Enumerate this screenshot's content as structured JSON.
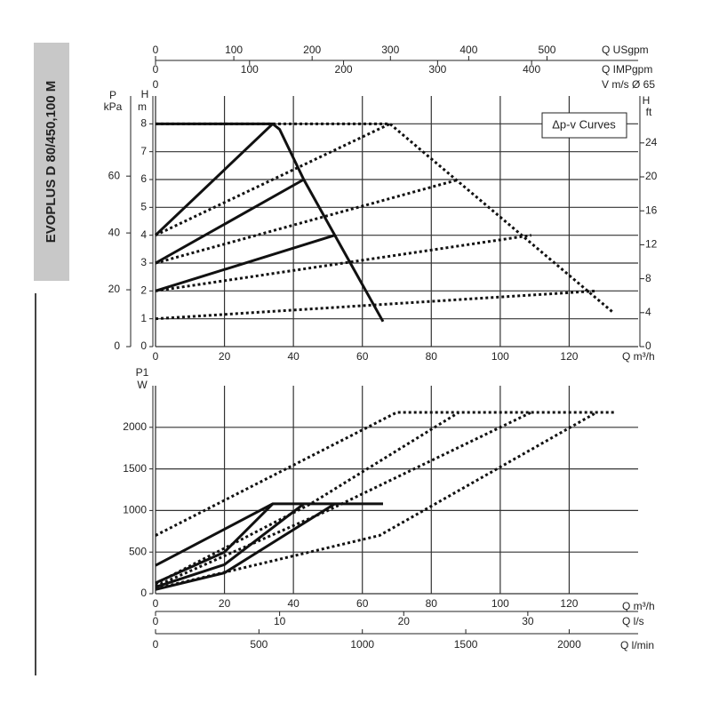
{
  "side_title": "EVOPLUS D 80/450,100 M",
  "chart_data": [
    {
      "type": "line",
      "xlabel": "Q m³/h",
      "ylabel": [
        "H",
        "m"
      ],
      "annotation": "Δp-v Curves",
      "xlim": [
        0,
        140
      ],
      "xticks": [
        0,
        20,
        40,
        60,
        80,
        100,
        120
      ],
      "ylim": [
        0,
        9
      ],
      "yticks": [
        0,
        1,
        2,
        3,
        4,
        5,
        6,
        7,
        8
      ],
      "grid": true,
      "extra_axes": [
        {
          "label": [
            "Q USgpm"
          ],
          "lim": [
            0,
            616.4
          ],
          "ticks": [
            0,
            100,
            200,
            300,
            400,
            500
          ]
        },
        {
          "label": [
            "Q IMPgpm"
          ],
          "lim": [
            0,
            513.3
          ],
          "ticks": [
            0,
            100,
            200,
            300,
            400
          ]
        },
        {
          "label": [
            "V m/s Ø 65"
          ],
          "lim": [
            0,
            11.72
          ],
          "ticks": [
            0
          ]
        },
        {
          "label": [
            "P",
            "kPa"
          ],
          "lim": [
            0,
            88.2
          ],
          "ticks": [
            0,
            20,
            40,
            60
          ]
        },
        {
          "label": [
            "H",
            "ft"
          ],
          "lim": [
            0,
            29.53
          ],
          "ticks": [
            0,
            4,
            8,
            12,
            16,
            20,
            24
          ]
        }
      ],
      "series": [
        {
          "color": "#111111",
          "dash": false,
          "x": [
            0,
            34,
            36,
            43,
            52,
            66
          ],
          "values": [
            8,
            8,
            7.8,
            6,
            4,
            0.9
          ]
        },
        {
          "color": "#111111",
          "dash": false,
          "x": [
            0,
            34
          ],
          "values": [
            4,
            8
          ]
        },
        {
          "color": "#111111",
          "dash": false,
          "x": [
            0,
            43
          ],
          "values": [
            3,
            6
          ]
        },
        {
          "color": "#111111",
          "dash": false,
          "x": [
            0,
            52
          ],
          "values": [
            2,
            4
          ]
        },
        {
          "color": "#111111",
          "dash": true,
          "x": [
            0,
            68,
            133
          ],
          "values": [
            8,
            8,
            1.2
          ]
        },
        {
          "color": "#111111",
          "dash": true,
          "x": [
            0,
            68
          ],
          "values": [
            4,
            8
          ]
        },
        {
          "color": "#111111",
          "dash": true,
          "x": [
            0,
            88
          ],
          "values": [
            3,
            6
          ]
        },
        {
          "color": "#111111",
          "dash": true,
          "x": [
            0,
            109
          ],
          "values": [
            2,
            4
          ]
        },
        {
          "color": "#111111",
          "dash": true,
          "x": [
            0,
            128
          ],
          "values": [
            1,
            2
          ]
        }
      ]
    },
    {
      "type": "line",
      "xlabel": "Q m³/h",
      "ylabel": [
        "P1",
        "W"
      ],
      "xlim": [
        0,
        140
      ],
      "xticks": [
        0,
        20,
        40,
        60,
        80,
        100,
        120
      ],
      "ylim": [
        0,
        2500
      ],
      "yticks": [
        0,
        500,
        1000,
        1500,
        2000
      ],
      "grid": true,
      "extra_axes": [
        {
          "label": [
            "Q l/s"
          ],
          "lim": [
            0,
            38.89
          ],
          "ticks": [
            0,
            10,
            20,
            30
          ]
        },
        {
          "label": [
            "Q l/min"
          ],
          "lim": [
            0,
            2333.3
          ],
          "ticks": [
            0,
            500,
            1000,
            1500,
            2000
          ]
        }
      ],
      "series": [
        {
          "color": "#111111",
          "dash": false,
          "x": [
            0,
            34,
            66
          ],
          "values": [
            340,
            1080,
            1080
          ]
        },
        {
          "color": "#111111",
          "dash": false,
          "x": [
            0,
            20,
            34
          ],
          "values": [
            130,
            500,
            1080
          ]
        },
        {
          "color": "#111111",
          "dash": false,
          "x": [
            0,
            20,
            43
          ],
          "values": [
            80,
            350,
            1080
          ]
        },
        {
          "color": "#111111",
          "dash": false,
          "x": [
            0,
            20,
            52
          ],
          "values": [
            50,
            250,
            1080
          ]
        },
        {
          "color": "#111111",
          "dash": true,
          "x": [
            0,
            70,
            133
          ],
          "values": [
            700,
            2180,
            2180
          ]
        },
        {
          "color": "#111111",
          "dash": true,
          "x": [
            0,
            45,
            88
          ],
          "values": [
            120,
            1080,
            2180
          ]
        },
        {
          "color": "#111111",
          "dash": true,
          "x": [
            0,
            50,
            109
          ],
          "values": [
            90,
            1000,
            2180
          ]
        },
        {
          "color": "#111111",
          "dash": true,
          "x": [
            0,
            65,
            128
          ],
          "values": [
            60,
            700,
            2180
          ]
        }
      ]
    }
  ]
}
